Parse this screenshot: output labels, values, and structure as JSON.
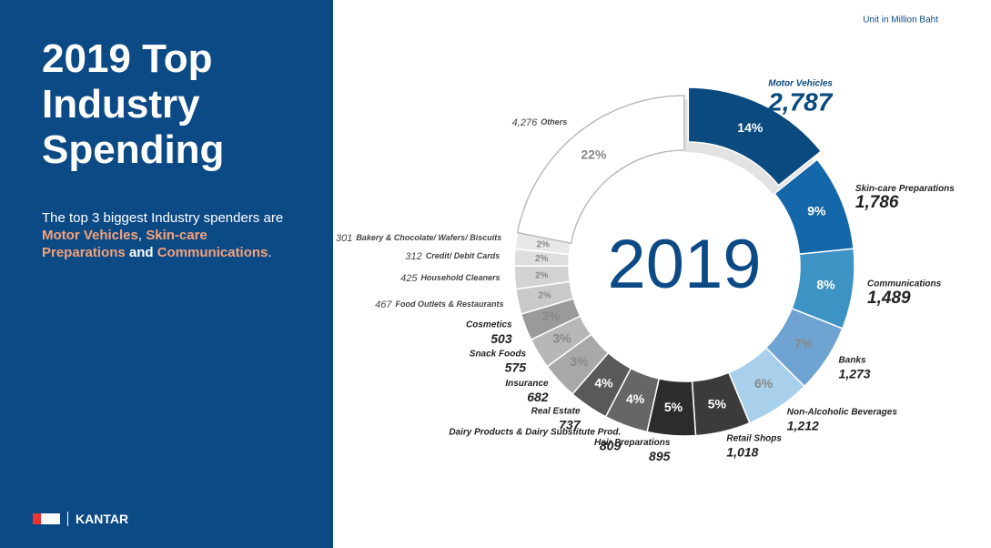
{
  "title_lines": [
    "2019 Top",
    "Industry",
    "Spending"
  ],
  "description": [
    {
      "text": "The top 3 biggest Industry spenders are "
    },
    {
      "text": "Motor Vehicles",
      "highlight": true
    },
    {
      "text": ", "
    },
    {
      "text": "Skin-care Preparations",
      "highlight": true
    },
    {
      "text": " and ",
      "bold": true
    },
    {
      "text": "Communications",
      "highlight": true
    },
    {
      "text": "."
    }
  ],
  "logo": "KANTAR",
  "chart_data": {
    "type": "donut",
    "center_label": "2019",
    "unit_note": "Unit in Million Baht",
    "categories": [
      "Motor Vehicles",
      "Skin-care Preparations",
      "Communications",
      "Banks",
      "Non-Alcoholic Beverages",
      "Retail Shops",
      "Hair Preparations",
      "Dairy Products & Dairy Substitute Prod.",
      "Real Estate",
      "Insurance",
      "Snack Foods",
      "Cosmetics",
      "Food Outlets & Restaurants",
      "Household Cleaners",
      "Credit/ Debit Cards",
      "Bakery & Chocolate/ Wafers/ Biscuits",
      "Others"
    ],
    "values": [
      2787,
      1786,
      1489,
      1273,
      1212,
      1018,
      895,
      809,
      737,
      682,
      575,
      503,
      467,
      425,
      312,
      301,
      4276
    ],
    "value_labels": [
      "2,787",
      "1,786",
      "1,489",
      "1,273",
      "1,212",
      "1,018",
      "895",
      "809",
      "737",
      "682",
      "575",
      "503",
      "467",
      "425",
      "312",
      "301",
      "4,276"
    ],
    "percentages": [
      {
        "value": 14,
        "label": "14%"
      },
      {
        "value": 9,
        "label": "9%"
      },
      {
        "value": 8,
        "label": "8%"
      },
      {
        "value": 7,
        "label": "7%"
      },
      {
        "value": 6,
        "label": "6%"
      },
      {
        "value": 5,
        "label": "5%"
      },
      {
        "value": 5,
        "label": "5%"
      },
      {
        "value": 4,
        "label": "4%"
      },
      {
        "value": 4,
        "label": "4%"
      },
      {
        "value": 3,
        "label": "3%"
      },
      {
        "value": 3,
        "label": "3%"
      },
      {
        "value": 3,
        "label": "3%"
      },
      {
        "value": 2,
        "label": "2%"
      },
      {
        "value": 2,
        "label": "2%"
      },
      {
        "value": 2,
        "label": "2%"
      },
      {
        "value": 2,
        "label": "2%"
      },
      {
        "value": 22,
        "label": "22%"
      }
    ],
    "colors": [
      "#0b4a7f",
      "#1467a8",
      "#3d93c4",
      "#6fa3d1",
      "#a8d0ea",
      "#3b3b3b",
      "#2c2c2c",
      "#666666",
      "#595959",
      "#a8a8a8",
      "#b7b7b7",
      "#9a9a9a",
      "#c9c9c9",
      "#d3d3d3",
      "#dedede",
      "#e8e8e8",
      "#ffffff"
    ]
  }
}
